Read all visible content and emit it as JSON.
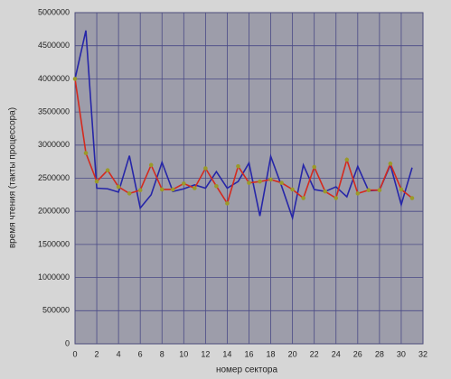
{
  "chart_data": {
    "type": "line",
    "x_label": "номер сектора",
    "y_label": "время чтения (такты процессора)",
    "x": [
      0,
      1,
      2,
      3,
      4,
      5,
      6,
      7,
      8,
      9,
      10,
      11,
      12,
      13,
      14,
      15,
      16,
      17,
      18,
      19,
      20,
      21,
      22,
      23,
      24,
      25,
      26,
      27,
      28,
      29,
      30,
      31
    ],
    "series": [
      {
        "color": "#2626a8",
        "marker": false,
        "values": [
          4000000,
          4730000,
          2350000,
          2340000,
          2290000,
          2840000,
          2050000,
          2250000,
          2740000,
          2300000,
          2340000,
          2400000,
          2350000,
          2600000,
          2350000,
          2450000,
          2730000,
          1930000,
          2830000,
          2380000,
          1900000,
          2700000,
          2330000,
          2300000,
          2370000,
          2220000,
          2680000,
          2310000,
          2320000,
          2700000,
          2100000,
          2660000
        ]
      },
      {
        "color": "#d42a1e",
        "marker": true,
        "marker_color": "#9a9a2a",
        "values": [
          4000000,
          2880000,
          2450000,
          2620000,
          2370000,
          2270000,
          2320000,
          2700000,
          2330000,
          2330000,
          2420000,
          2350000,
          2650000,
          2380000,
          2120000,
          2680000,
          2430000,
          2450000,
          2480000,
          2430000,
          2330000,
          2200000,
          2670000,
          2300000,
          2200000,
          2780000,
          2270000,
          2320000,
          2320000,
          2720000,
          2330000,
          2200000
        ]
      }
    ],
    "xlim": [
      0,
      32
    ],
    "xticks": [
      0,
      2,
      4,
      6,
      8,
      10,
      12,
      14,
      16,
      18,
      20,
      22,
      24,
      26,
      28,
      30,
      32
    ],
    "ylim": [
      0,
      5000000
    ],
    "yticks": [
      0,
      500000,
      1000000,
      1500000,
      2000000,
      2500000,
      3000000,
      3500000,
      4000000,
      4500000,
      5000000
    ],
    "grid": true
  }
}
